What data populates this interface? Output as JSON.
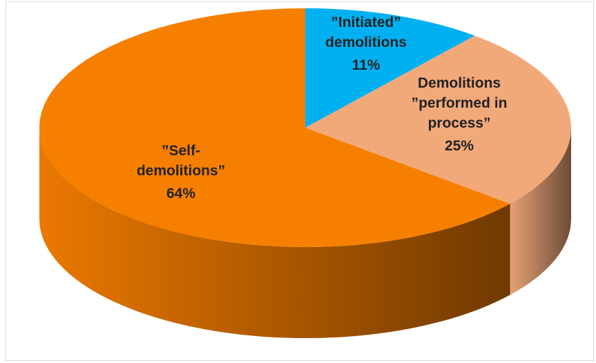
{
  "chart_data": {
    "type": "pie",
    "categories": [
      "”Initiated” demolitions",
      "Demolitions ”performed in process”",
      "”Self-demolitions”"
    ],
    "values": [
      11,
      25,
      64
    ],
    "value_labels": [
      "11%",
      "25%",
      "64%"
    ],
    "colors": [
      "#00b0f0",
      "#f2a97a",
      "#f77f00"
    ]
  }
}
